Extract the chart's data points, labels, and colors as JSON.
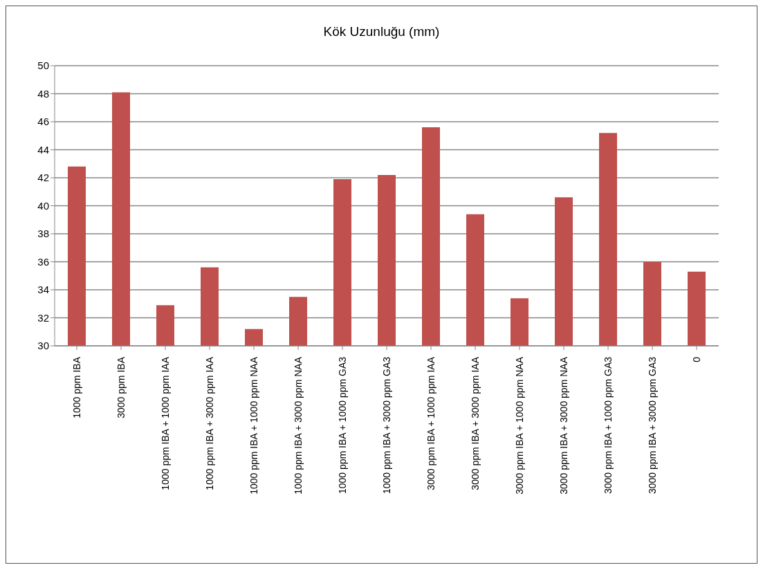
{
  "chart_data": {
    "type": "bar",
    "title": "Kök Uzunluğu (mm)",
    "categories": [
      "1000 ppm IBA",
      "3000 ppm IBA",
      "1000 ppm IBA + 1000 ppm IAA",
      "1000 ppm IBA + 3000 ppm IAA",
      "1000 ppm IBA + 1000 ppm NAA",
      "1000 ppm IBA + 3000 ppm NAA",
      "1000 ppm IBA + 1000 ppm GA3",
      "1000 ppm IBA + 3000 ppm GA3",
      "3000 ppm IBA + 1000 ppm IAA",
      "3000 ppm IBA + 3000 ppm IAA",
      "3000 ppm IBA + 1000 ppm NAA",
      "3000 ppm IBA + 3000 ppm NAA",
      "3000 ppm IBA + 1000 ppm GA3",
      "3000 ppm IBA + 3000 ppm GA3",
      "0"
    ],
    "values": [
      42.8,
      48.1,
      32.9,
      35.6,
      31.2,
      33.5,
      41.9,
      42.2,
      45.6,
      39.4,
      33.4,
      40.6,
      45.2,
      36.0,
      35.3
    ],
    "color": "#c0504d",
    "ylim": [
      30,
      50
    ],
    "yticks": [
      30,
      32,
      34,
      36,
      38,
      40,
      42,
      44,
      46,
      48,
      50
    ],
    "grid": "y"
  }
}
